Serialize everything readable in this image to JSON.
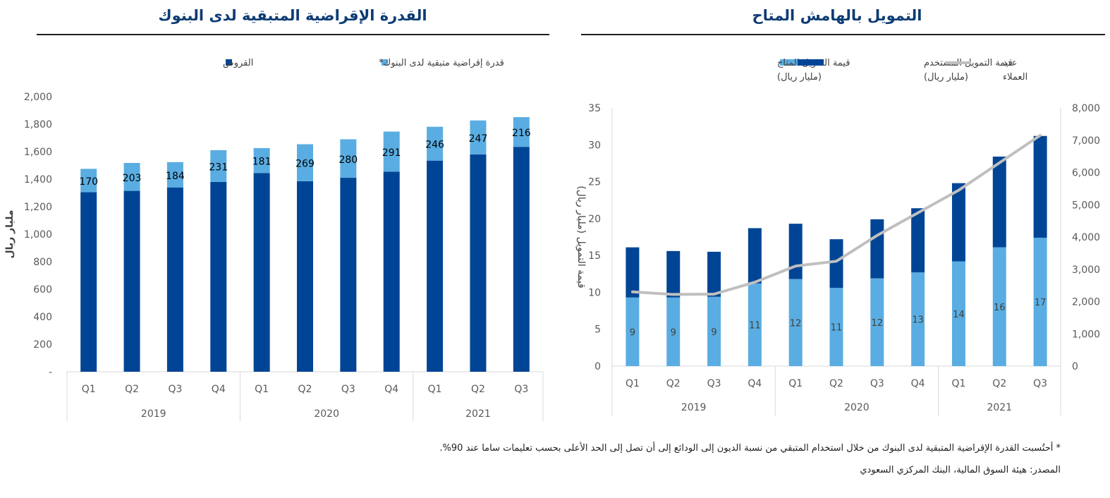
{
  "left_panel": {
    "title": "القدرة الإقراضية المتبقية لدى البنوك",
    "ylabel": "مليار ريال",
    "legend": {
      "loans": "القروض",
      "capacity": "قدرة إقراضية متبقية لدى البنوك*"
    }
  },
  "right_panel": {
    "title": "التمويل بالهامش المتاح",
    "ylabel_left": "قيمة التمويل (مليار ريال)",
    "legend": {
      "available_l1": "قيمة التمويل المتاح",
      "available_l2": "(مليار ريال)",
      "used_l1": "قيمة التمويل المستخدم",
      "used_l2": "(مليار ريال)",
      "clients_l1": "عدد",
      "clients_l2": "العملاء"
    }
  },
  "footnotes": {
    "note": "* أحتُسبت القدرة الإقراضية المتبقية لدى البنوك من خلال استخدام المتبقي من نسبة الديون إلى الودائع إلى أن تصل إلى الحد الأعلى بحسب تعليمات ساما عند 90%.",
    "source": "المصدر: هيئة السوق المالية، البنك المركزي السعودي"
  },
  "colors": {
    "dark": "#004595",
    "light": "#5aade2",
    "line": "#bfbfbf",
    "title": "#0d3c73"
  },
  "chart_data": [
    {
      "type": "bar",
      "stacked": true,
      "title": "القدرة الإقراضية المتبقية لدى البنوك",
      "ylabel": "مليار ريال",
      "ylim": [
        0,
        2000
      ],
      "yticks": [
        "-",
        "200",
        "400",
        "600",
        "800",
        "1,000",
        "1,200",
        "1,400",
        "1,600",
        "1,800",
        "2,000"
      ],
      "categories": [
        "Q1",
        "Q2",
        "Q3",
        "Q4",
        "Q1",
        "Q2",
        "Q3",
        "Q4",
        "Q1",
        "Q2",
        "Q3"
      ],
      "groups": [
        {
          "label": "2019",
          "count": 4
        },
        {
          "label": "2020",
          "count": 4
        },
        {
          "label": "2021",
          "count": 3
        }
      ],
      "series": [
        {
          "name": "القروض",
          "values": [
            1305,
            1315,
            1340,
            1380,
            1445,
            1385,
            1410,
            1455,
            1535,
            1580,
            1635
          ]
        },
        {
          "name": "قدرة إقراضية متبقية لدى البنوك*",
          "values": [
            170,
            203,
            184,
            231,
            181,
            269,
            280,
            291,
            246,
            247,
            216
          ],
          "data_labels": [
            "170",
            "203",
            "184",
            "231",
            "181",
            "269",
            "280",
            "291",
            "246",
            "247",
            "216"
          ]
        }
      ],
      "grid": false,
      "legend_position": "top"
    },
    {
      "type": "bar+line",
      "stacked": true,
      "title": "التمويل بالهامش المتاح",
      "ylabel_left": "قيمة التمويل (مليار ريال)",
      "ylim_left": [
        0,
        35
      ],
      "yticks_left": [
        "0",
        "5",
        "10",
        "15",
        "20",
        "25",
        "30",
        "35"
      ],
      "ylim_right": [
        0,
        8000
      ],
      "yticks_right": [
        "0",
        "1,000",
        "2,000",
        "3,000",
        "4,000",
        "5,000",
        "6,000",
        "7,000",
        "8,000"
      ],
      "categories": [
        "Q1",
        "Q2",
        "Q3",
        "Q4",
        "Q1",
        "Q2",
        "Q3",
        "Q4",
        "Q1",
        "Q2",
        "Q3"
      ],
      "groups": [
        {
          "label": "2019",
          "count": 4
        },
        {
          "label": "2020",
          "count": 4
        },
        {
          "label": "2021",
          "count": 3
        }
      ],
      "series": [
        {
          "name": "قيمة التمويل المتاح (مليار ريال)",
          "axis": "left",
          "values": [
            9.3,
            9.3,
            9.4,
            11.2,
            11.8,
            10.6,
            11.9,
            12.7,
            14.2,
            16.1,
            17.4
          ],
          "data_labels": [
            "9",
            "9",
            "9",
            "11",
            "12",
            "11",
            "12",
            "13",
            "14",
            "16",
            "17"
          ]
        },
        {
          "name": "قيمة التمويل المستخدم (مليار ريال)",
          "axis": "left",
          "values": [
            6.8,
            6.3,
            6.1,
            7.5,
            7.5,
            6.6,
            8.0,
            8.7,
            10.6,
            12.3,
            13.8
          ]
        },
        {
          "name": "عدد العملاء",
          "axis": "right",
          "type": "line",
          "values": [
            2300,
            2220,
            2230,
            2600,
            3100,
            3250,
            4050,
            4750,
            5450,
            6300,
            7150
          ]
        }
      ],
      "grid": false,
      "legend_position": "top"
    }
  ]
}
